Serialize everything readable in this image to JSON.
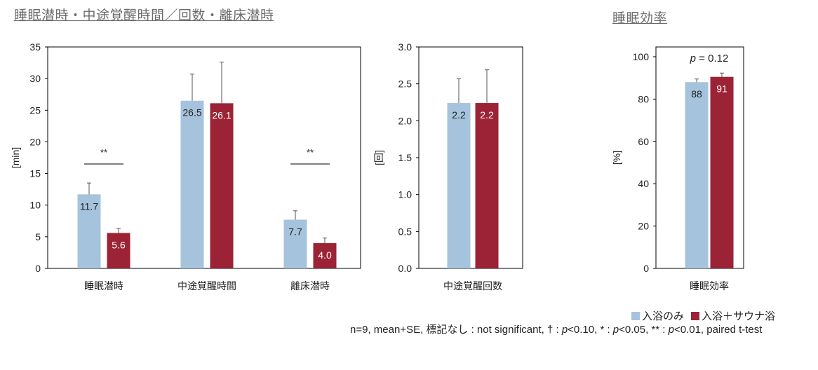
{
  "titles": {
    "left": "睡眠潜時・中途覚醒時間／回数・離床潜時",
    "right": "睡眠効率"
  },
  "colors": {
    "bath": "#a6c3dd",
    "sauna": "#9b2335",
    "axis": "#000000",
    "error": "#555555"
  },
  "legend": {
    "bath": "入浴のみ",
    "sauna": "入浴＋サウナ浴"
  },
  "footnote": {
    "prefix": "n=9, mean+SE, 標記なし : not significant, † : ",
    "p1": "p",
    "t1": "<0.10, * : ",
    "p2": "p",
    "t2": "<0.05, ** : ",
    "p3": "p",
    "t3": "<0.01, paired t-test"
  },
  "chart_data": [
    {
      "type": "bar",
      "ylabel": "[min]",
      "ylim": [
        0,
        35
      ],
      "yticks": [
        "0",
        "5",
        "10",
        "15",
        "20",
        "25",
        "30",
        "35"
      ],
      "categories": [
        "睡眠潜時",
        "中途覚醒時間",
        "離床潜時"
      ],
      "series": [
        {
          "name": "入浴のみ",
          "values": [
            11.7,
            26.5,
            7.7
          ],
          "labels": [
            "11.7",
            "26.5",
            "7.7"
          ],
          "se": [
            1.8,
            4.2,
            1.4
          ]
        },
        {
          "name": "入浴＋サウナ浴",
          "values": [
            5.6,
            26.1,
            4.0
          ],
          "labels": [
            "5.6",
            "26.1",
            "4.0"
          ],
          "se": [
            0.7,
            6.5,
            0.8
          ]
        }
      ],
      "annotations": [
        {
          "category": "睡眠潜時",
          "text": "**",
          "y": 16.8
        },
        {
          "category": "離床潜時",
          "text": "**",
          "y": 16.8
        }
      ]
    },
    {
      "type": "bar",
      "ylabel": "[回]",
      "ylim": [
        0,
        3.0
      ],
      "yticks": [
        "0.0",
        "0.5",
        "1.0",
        "1.5",
        "2.0",
        "2.5",
        "3.0"
      ],
      "categories": [
        "中途覚醒回数"
      ],
      "series": [
        {
          "name": "入浴のみ",
          "values": [
            2.24
          ],
          "labels": [
            "2.2"
          ],
          "se": [
            0.33
          ]
        },
        {
          "name": "入浴＋サウナ浴",
          "values": [
            2.24
          ],
          "labels": [
            "2.2"
          ],
          "se": [
            0.45
          ]
        }
      ],
      "annotations": []
    },
    {
      "type": "bar",
      "ylabel": "[%]",
      "ylim": [
        0,
        100
      ],
      "yticks": [
        "0",
        "20",
        "40",
        "60",
        "80",
        "100"
      ],
      "categories": [
        "睡眠効率"
      ],
      "series": [
        {
          "name": "入浴のみ",
          "values": [
            88
          ],
          "labels": [
            "88"
          ],
          "se": [
            1.5
          ]
        },
        {
          "name": "入浴＋サウナ浴",
          "values": [
            90.5
          ],
          "labels": [
            "91"
          ],
          "se": [
            1.8
          ]
        }
      ],
      "annotations": [
        {
          "category": "睡眠効率",
          "p": "p",
          "text": " = 0.12"
        }
      ]
    }
  ]
}
